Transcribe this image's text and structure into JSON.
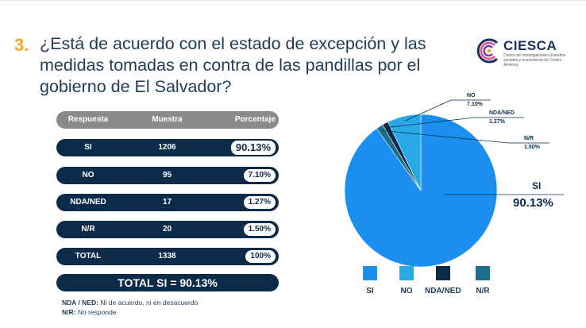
{
  "question": {
    "number": "3.",
    "text": "¿Está de acuerdo con el estado de excepción y las medidas tomadas en contra de las pandillas por el gobierno de El Salvador?"
  },
  "logo": {
    "name": "CIESCA",
    "subtitle": "Centro de Investigaciones Estudios sociales y económicos de Centro América"
  },
  "table": {
    "headers": [
      "Respuesta",
      "Muestra",
      "Porcentaje"
    ],
    "rows": [
      {
        "respuesta": "SI",
        "muestra": "1206",
        "porcentaje": "90.13%"
      },
      {
        "respuesta": "NO",
        "muestra": "95",
        "porcentaje": "7.10%"
      },
      {
        "respuesta": "NDA/NED",
        "muestra": "17",
        "porcentaje": "1.27%"
      },
      {
        "respuesta": "N/R",
        "muestra": "20",
        "porcentaje": "1.50%"
      },
      {
        "respuesta": "TOTAL",
        "muestra": "1338",
        "porcentaje": "100%"
      }
    ],
    "total_si": "TOTAL SI = 90.13%"
  },
  "notes": [
    {
      "key": "NDA / NED:",
      "text": "Ni de acuerdo, ni en desacuerdo"
    },
    {
      "key": "N/R:",
      "text": "No responde"
    }
  ],
  "colors": {
    "si": "#1a8ff0",
    "no": "#29a8e8",
    "nda": "#0c2b4b",
    "nr": "#1d6e8a",
    "accent": "#f2a62b",
    "dark": "#0c2b4b"
  },
  "chart_data": {
    "type": "pie",
    "categories": [
      "SI",
      "NO",
      "NDA/NED",
      "N/R"
    ],
    "values": [
      90.13,
      7.1,
      1.27,
      1.5
    ],
    "data_labels": [
      "90.13%",
      "7.10%",
      "1.27%",
      "1.50%"
    ],
    "legend": [
      "SI",
      "NO",
      "NDA/NED",
      "N/R"
    ],
    "legend_position": "bottom"
  }
}
